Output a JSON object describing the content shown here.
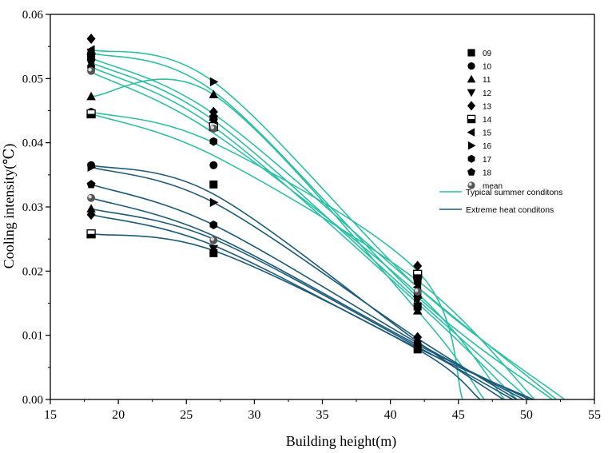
{
  "colors": {
    "summer": "#2bbfa4",
    "extreme": "#1b5a78",
    "marker": "#000000",
    "axis": "#000000"
  },
  "chart_data": {
    "type": "scatter",
    "title": "",
    "xlabel": "Building height(m)",
    "ylabel": "Cooling intensity(℃)",
    "xlim": [
      15,
      55
    ],
    "ylim": [
      0,
      0.06
    ],
    "x_ticks": [
      15,
      20,
      25,
      30,
      35,
      40,
      45,
      50,
      55
    ],
    "x_tick_labels": [
      "15",
      "20",
      "25",
      "30",
      "35",
      "40",
      "45",
      "50",
      "55"
    ],
    "y_ticks": [
      0,
      0.01,
      0.02,
      0.03,
      0.04,
      0.05,
      0.06
    ],
    "y_tick_labels": [
      "0.00",
      "0.01",
      "0.02",
      "0.03",
      "0.04",
      "0.05",
      "0.06"
    ],
    "x": [
      18,
      27,
      42
    ],
    "legend_position": "top-right",
    "series": [
      {
        "name": "09",
        "marker": "square",
        "values": [
          0.0535,
          0.0335,
          0.0145
        ]
      },
      {
        "name": "10",
        "marker": "circle",
        "values": [
          0.0448,
          0.0365,
          0.0183
        ]
      },
      {
        "name": "11",
        "marker": "triangle-up",
        "values": [
          0.0472,
          0.0475,
          0.0138
        ]
      },
      {
        "name": "12",
        "marker": "triangle-down",
        "values": [
          0.0532,
          0.0432,
          0.0155
        ]
      },
      {
        "name": "13",
        "marker": "diamond",
        "values": [
          0.0562,
          0.0448,
          0.0208
        ]
      },
      {
        "name": "14",
        "marker": "half-square",
        "values": [
          0.0445,
          0.0425,
          0.0195
        ]
      },
      {
        "name": "15",
        "marker": "triangle-left",
        "values": [
          0.0545,
          0.0435,
          0.0175
        ]
      },
      {
        "name": "16",
        "marker": "triangle-right",
        "values": [
          0.054,
          0.0495,
          0.0158
        ]
      },
      {
        "name": "17",
        "marker": "hexagon",
        "values": [
          0.0518,
          0.0402,
          0.0165
        ]
      },
      {
        "name": "18",
        "marker": "pentagon",
        "values": [
          0.0528,
          0.044,
          0.0185
        ]
      },
      {
        "name": "mean",
        "marker": "shaded-circle",
        "values": [
          0.0512,
          0.0422,
          0.0168
        ]
      }
    ],
    "extreme_points": [
      {
        "marker": "circle",
        "x": 18,
        "y": 0.0365
      },
      {
        "marker": "triangle-right",
        "x": 18,
        "y": 0.0362
      },
      {
        "marker": "pentagon",
        "x": 18,
        "y": 0.0335
      },
      {
        "marker": "shaded-circle",
        "x": 18,
        "y": 0.0314
      },
      {
        "marker": "triangle-up",
        "x": 18,
        "y": 0.0297
      },
      {
        "marker": "diamond",
        "x": 18,
        "y": 0.0288
      },
      {
        "marker": "half-square",
        "x": 18,
        "y": 0.0258
      },
      {
        "marker": "triangle-right",
        "x": 27,
        "y": 0.0307
      },
      {
        "marker": "hexagon",
        "x": 27,
        "y": 0.0272
      },
      {
        "marker": "shaded-circle",
        "x": 27,
        "y": 0.0248
      },
      {
        "marker": "triangle-down",
        "x": 27,
        "y": 0.0235
      },
      {
        "marker": "square",
        "x": 27,
        "y": 0.0228
      },
      {
        "marker": "diamond",
        "x": 42,
        "y": 0.0097
      },
      {
        "marker": "hexagon",
        "x": 42,
        "y": 0.0088
      },
      {
        "marker": "circle",
        "x": 42,
        "y": 0.0082
      },
      {
        "marker": "square",
        "x": 42,
        "y": 0.0078
      }
    ],
    "curves": [
      {
        "group": "summer",
        "points": [
          [
            18,
            0.0545
          ],
          [
            27,
            0.0495
          ],
          [
            42,
            0.0175
          ],
          [
            52.8,
            0
          ]
        ]
      },
      {
        "group": "summer",
        "points": [
          [
            18,
            0.054
          ],
          [
            27,
            0.048
          ],
          [
            42,
            0.016
          ],
          [
            51.9,
            0
          ]
        ]
      },
      {
        "group": "summer",
        "points": [
          [
            18,
            0.0532
          ],
          [
            27,
            0.0445
          ],
          [
            42,
            0.0175
          ],
          [
            52.2,
            0
          ]
        ]
      },
      {
        "group": "summer",
        "points": [
          [
            18,
            0.0525
          ],
          [
            27,
            0.0435
          ],
          [
            42,
            0.0155
          ],
          [
            50.2,
            0
          ]
        ]
      },
      {
        "group": "summer",
        "points": [
          [
            18,
            0.0518
          ],
          [
            27,
            0.0425
          ],
          [
            42,
            0.015
          ],
          [
            49.3,
            0
          ]
        ]
      },
      {
        "group": "summer",
        "points": [
          [
            18,
            0.051
          ],
          [
            27,
            0.0415
          ],
          [
            42,
            0.0165
          ],
          [
            48.4,
            0
          ]
        ]
      },
      {
        "group": "summer",
        "points": [
          [
            18,
            0.0472
          ],
          [
            27,
            0.0475
          ],
          [
            42,
            0.0138
          ],
          [
            46.9,
            0
          ]
        ]
      },
      {
        "group": "summer",
        "points": [
          [
            18,
            0.0445
          ],
          [
            27,
            0.038
          ],
          [
            42,
            0.0185
          ],
          [
            50.6,
            0
          ]
        ]
      },
      {
        "group": "summer",
        "points": [
          [
            18,
            0.0448
          ],
          [
            27,
            0.04
          ],
          [
            42,
            0.02
          ],
          [
            45.3,
            0
          ]
        ]
      },
      {
        "group": "extreme",
        "points": [
          [
            18,
            0.0365
          ],
          [
            27,
            0.032
          ],
          [
            42,
            0.009
          ],
          [
            48.3,
            0
          ]
        ]
      },
      {
        "group": "extreme",
        "points": [
          [
            18,
            0.0362
          ],
          [
            27,
            0.0307
          ],
          [
            42,
            0.0095
          ],
          [
            49.3,
            0
          ]
        ]
      },
      {
        "group": "extreme",
        "points": [
          [
            18,
            0.0335
          ],
          [
            27,
            0.0272
          ],
          [
            42,
            0.0088
          ],
          [
            49.8,
            0
          ]
        ]
      },
      {
        "group": "extreme",
        "points": [
          [
            18,
            0.0314
          ],
          [
            27,
            0.0255
          ],
          [
            42,
            0.0085
          ],
          [
            50.2,
            0
          ]
        ]
      },
      {
        "group": "extreme",
        "points": [
          [
            18,
            0.0297
          ],
          [
            27,
            0.025
          ],
          [
            42,
            0.0082
          ],
          [
            49.0,
            0
          ]
        ]
      },
      {
        "group": "extreme",
        "points": [
          [
            18,
            0.0288
          ],
          [
            27,
            0.024
          ],
          [
            42,
            0.008
          ],
          [
            50.5,
            0
          ]
        ]
      },
      {
        "group": "extreme",
        "points": [
          [
            18,
            0.0258
          ],
          [
            27,
            0.0232
          ],
          [
            42,
            0.0078
          ],
          [
            46.6,
            0
          ]
        ]
      }
    ],
    "line_legend": [
      {
        "label": "Typical summer conditons",
        "group": "summer"
      },
      {
        "label": "Extreme heat conditons",
        "group": "extreme"
      }
    ]
  }
}
